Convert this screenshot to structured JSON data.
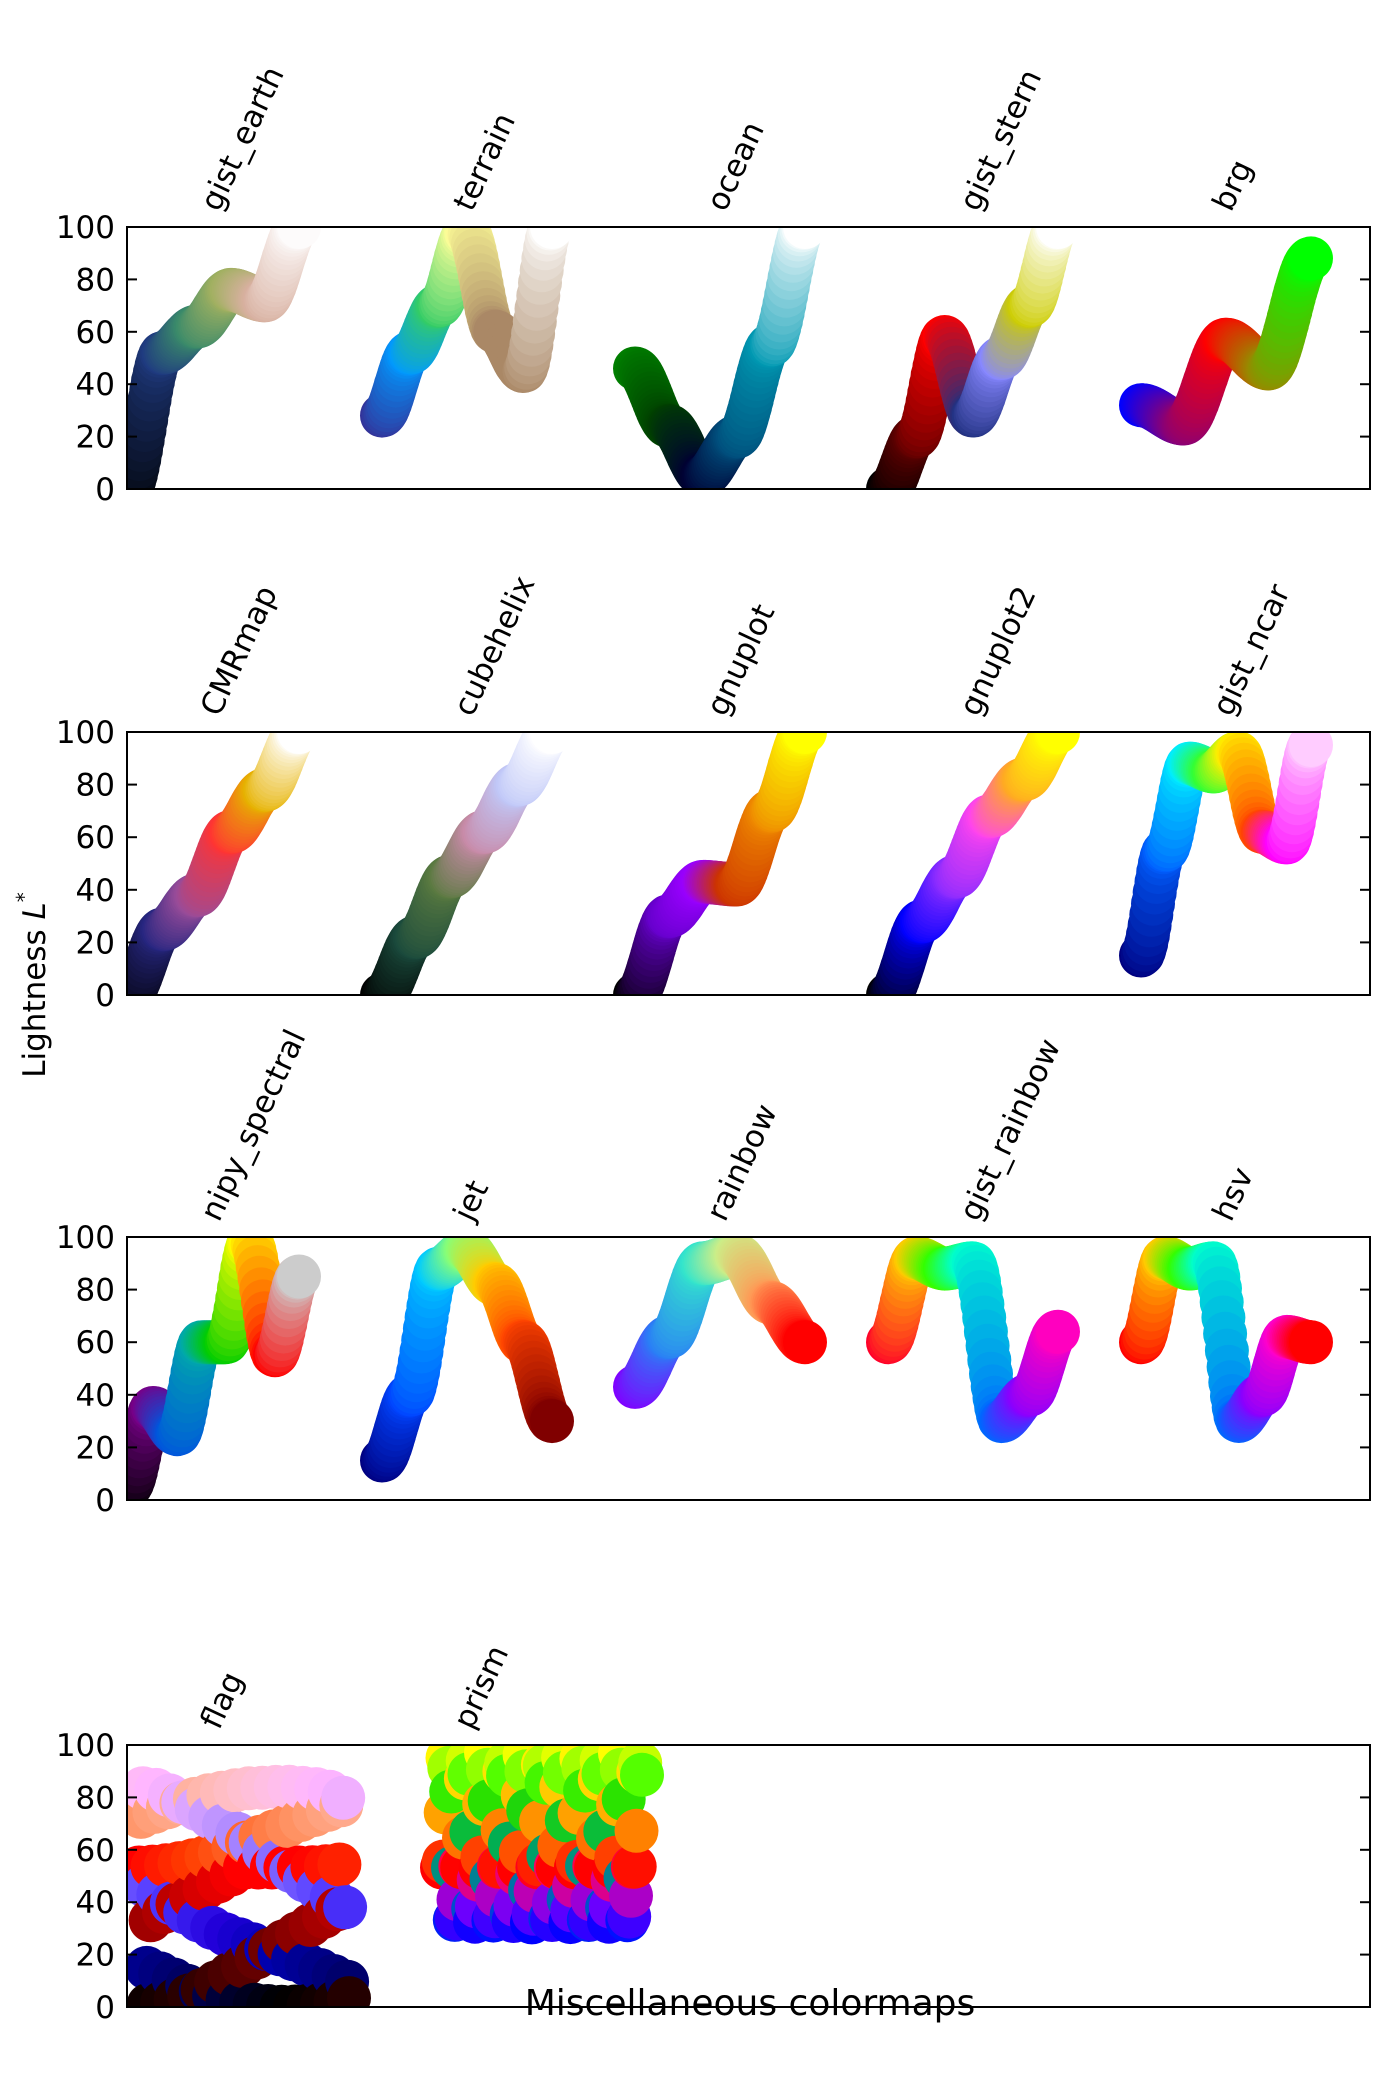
{
  "figure": {
    "ylabel": "Lightness L*",
    "ylabel_main": "Lightness ",
    "ylabel_var": "L",
    "ylabel_sup": "*",
    "xlabel": "Miscellaneous colormaps"
  },
  "chart_data": {
    "type": "scatter",
    "ylim": [
      0,
      100
    ],
    "yticks": [
      "0",
      "20",
      "40",
      "60",
      "80",
      "100"
    ],
    "grid": false,
    "panels": [
      {
        "colormaps": [
          {
            "name": "gist_earth",
            "color_stops": [
              "#000000",
              "#1f3a80",
              "#3a8a6a",
              "#a0b060",
              "#d8b0a0",
              "#fdfbfb"
            ],
            "L_stops": [
              0,
              52,
              62,
              76,
              72,
              100
            ]
          },
          {
            "name": "terrain",
            "color_stops": [
              "#333399",
              "#0099ff",
              "#33cc66",
              "#ffff99",
              "#aa8866",
              "#aa8866",
              "#ffffff"
            ],
            "L_stops": [
              28,
              52,
              70,
              98,
              60,
              45,
              100
            ]
          },
          {
            "name": "ocean",
            "color_stops": [
              "#007f00",
              "#004000",
              "#000033",
              "#004c7a",
              "#0099b2",
              "#ffffff"
            ],
            "L_stops": [
              46,
              24,
              5,
              20,
              55,
              100
            ]
          },
          {
            "name": "gist_stern",
            "color_stops": [
              "#000000",
              "#600000",
              "#ff0000",
              "#203080",
              "#8888ff",
              "#cccc00",
              "#ffffff"
            ],
            "L_stops": [
              0,
              20,
              58,
              28,
              50,
              70,
              100
            ]
          },
          {
            "name": "brg",
            "color_stops": [
              "#0000ff",
              "#880077",
              "#ff0000",
              "#998800",
              "#00ff00"
            ],
            "L_stops": [
              32,
              25,
              57,
              46,
              88
            ]
          }
        ]
      },
      {
        "colormaps": [
          {
            "name": "CMRmap",
            "color_stops": [
              "#000000",
              "#262680",
              "#994c99",
              "#ff3333",
              "#e6b200",
              "#ffffff"
            ],
            "L_stops": [
              0,
              25,
              38,
              62,
              78,
              100
            ]
          },
          {
            "name": "cubehelix",
            "color_stops": [
              "#000000",
              "#1a4a3c",
              "#5a7a40",
              "#c88aa8",
              "#c0c8f8",
              "#ffffff"
            ],
            "L_stops": [
              0,
              22,
              45,
              62,
              80,
              100
            ]
          },
          {
            "name": "gnuplot",
            "color_stops": [
              "#000000",
              "#6600cc",
              "#9900ff",
              "#cc3300",
              "#ee8800",
              "#ffff00"
            ],
            "L_stops": [
              0,
              30,
              43,
              42,
              70,
              100
            ]
          },
          {
            "name": "gnuplot2",
            "color_stops": [
              "#000000",
              "#0000ff",
              "#8a2bff",
              "#ff44ee",
              "#ffaa22",
              "#ffff00"
            ],
            "L_stops": [
              0,
              28,
              45,
              68,
              82,
              100
            ]
          },
          {
            "name": "gist_ncar",
            "color_stops": [
              "#000080",
              "#0060ff",
              "#00eeff",
              "#33ff33",
              "#ffee00",
              "#ff4400",
              "#ff00ff",
              "#ffccff"
            ],
            "L_stops": [
              15,
              55,
              88,
              85,
              92,
              62,
              58,
              95
            ]
          }
        ]
      },
      {
        "colormaps": [
          {
            "name": "nipy_spectral",
            "color_stops": [
              "#000000",
              "#770088",
              "#0055dd",
              "#00aaaa",
              "#00cc00",
              "#ffff00",
              "#ff0000",
              "#cccccc"
            ],
            "L_stops": [
              5,
              35,
              25,
              60,
              60,
              98,
              55,
              85
            ]
          },
          {
            "name": "jet",
            "color_stops": [
              "#000080",
              "#0044ff",
              "#00ccff",
              "#88ff77",
              "#ffcc00",
              "#ff4400",
              "#800000"
            ],
            "L_stops": [
              15,
              40,
              88,
              95,
              82,
              60,
              30
            ]
          },
          {
            "name": "rainbow",
            "color_stops": [
              "#8000ff",
              "#2a7ef6",
              "#33e5cc",
              "#ccee88",
              "#ff9955",
              "#ff0000"
            ],
            "L_stops": [
              43,
              62,
              90,
              93,
              75,
              60
            ]
          },
          {
            "name": "gist_rainbow",
            "color_stops": [
              "#ff0029",
              "#ffcc00",
              "#33ff00",
              "#00ffcc",
              "#0066ff",
              "#8800ff",
              "#ff00bf"
            ],
            "L_stops": [
              60,
              92,
              88,
              90,
              30,
              40,
              64
            ]
          },
          {
            "name": "hsv",
            "color_stops": [
              "#ff0000",
              "#ffcc00",
              "#33ff00",
              "#00ffcc",
              "#0066ff",
              "#8800ff",
              "#ff00cc",
              "#ff0000"
            ],
            "L_stops": [
              60,
              92,
              88,
              90,
              30,
              40,
              62,
              60
            ]
          }
        ]
      },
      {
        "colormaps": [
          {
            "name": "flag"
          },
          {
            "name": "prism"
          }
        ]
      }
    ]
  }
}
